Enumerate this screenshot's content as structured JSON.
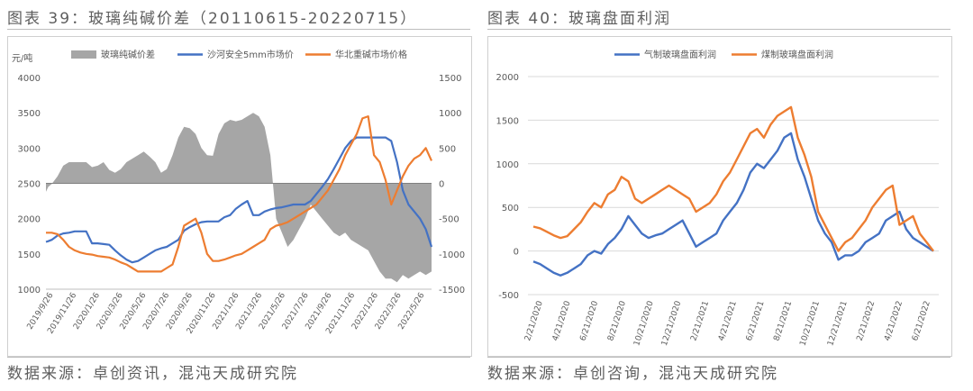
{
  "left": {
    "figure_title": "图表 39：玻璃纯碱价差（20110615-20220715）",
    "source": "数据来源：卓创资讯，混沌天成研究院"
  },
  "right": {
    "figure_title": "图表 40：玻璃盘面利润",
    "source": "数据来源：卓创咨询，混沌天成研究院"
  },
  "colors": {
    "gray": "#a6a6a6",
    "blue": "#4472c4",
    "orange": "#ed7d31",
    "grid": "#d9d9d9",
    "text": "#595959"
  },
  "chart_data": [
    {
      "type": "line",
      "title": "",
      "ylabel": "元/吨",
      "ylim": [
        1000,
        4000
      ],
      "y2lim": [
        -1500,
        1500
      ],
      "yticks": [
        1000,
        1500,
        2000,
        2500,
        3000,
        3500,
        4000
      ],
      "y2ticks": [
        -1500,
        -1000,
        -500,
        0,
        500,
        1000,
        1500
      ],
      "x_ticks": [
        "2019/9/26",
        "2019/11/26",
        "2020/1/26",
        "2020/3/26",
        "2020/5/26",
        "2020/7/26",
        "2020/9/26",
        "2020/11/26",
        "2021/1/26",
        "2021/3/26",
        "2021/5/26",
        "2021/7/26",
        "2021/9/26",
        "2021/11/26",
        "2022/1/26",
        "2022/3/26",
        "2022/5/26"
      ],
      "x": [
        0,
        0.2,
        0.5,
        1,
        1.5,
        2,
        2.5,
        3,
        3.5,
        4,
        4.5,
        5,
        5.5,
        6,
        6.5,
        7,
        7.5,
        8,
        8.5,
        9,
        9.5,
        10,
        10.5,
        11,
        11.5,
        12,
        12.5,
        13,
        13.5,
        14,
        14.5,
        15,
        15.5,
        16,
        16.5,
        17,
        17.5,
        18,
        18.5,
        19,
        19.5,
        20,
        20.5,
        21,
        21.5,
        22,
        22.5,
        23,
        23.5,
        24,
        24.5,
        25,
        25.5,
        26,
        26.5,
        27,
        27.5,
        28,
        28.5,
        29,
        29.5,
        30,
        30.5,
        31,
        31.5,
        32,
        32.5,
        33,
        33.5
      ],
      "legend_position": "top",
      "series": [
        {
          "name": "玻璃纯碱价差",
          "kind": "area",
          "axis": "right",
          "values": [
            -120,
            -50,
            -10,
            100,
            250,
            300,
            300,
            300,
            300,
            230,
            250,
            300,
            190,
            150,
            200,
            300,
            350,
            400,
            450,
            380,
            300,
            150,
            200,
            400,
            650,
            800,
            780,
            700,
            500,
            400,
            390,
            700,
            850,
            900,
            880,
            900,
            950,
            1000,
            950,
            800,
            400,
            -500,
            -700,
            -900,
            -800,
            -650,
            -500,
            -300,
            -400,
            -500,
            -600,
            -700,
            -750,
            -700,
            -800,
            -850,
            -900,
            -950,
            -1100,
            -1250,
            -1350,
            -1350,
            -1400,
            -1300,
            -1350,
            -1300,
            -1250,
            -1300,
            -1250
          ]
        },
        {
          "name": "沙河安全5mm市场价",
          "kind": "line",
          "axis": "left",
          "values": [
            1670,
            1680,
            1700,
            1760,
            1790,
            1800,
            1820,
            1820,
            1820,
            1650,
            1650,
            1640,
            1630,
            1550,
            1480,
            1420,
            1380,
            1400,
            1450,
            1500,
            1550,
            1580,
            1600,
            1650,
            1700,
            1830,
            1880,
            1920,
            1950,
            1960,
            1960,
            1960,
            2020,
            2050,
            2140,
            2200,
            2250,
            2050,
            2050,
            2100,
            2130,
            2150,
            2160,
            2180,
            2200,
            2200,
            2200,
            2250,
            2350,
            2450,
            2560,
            2700,
            2850,
            3000,
            3100,
            3150,
            3150,
            3150,
            3150,
            3150,
            3150,
            3100,
            2800,
            2400,
            2200,
            2100,
            2000,
            1850,
            1600
          ]
        },
        {
          "name": "华北重碱市场价格",
          "kind": "line",
          "axis": "left",
          "values": [
            1800,
            1800,
            1800,
            1780,
            1700,
            1600,
            1550,
            1520,
            1500,
            1490,
            1470,
            1460,
            1450,
            1420,
            1380,
            1350,
            1300,
            1250,
            1250,
            1250,
            1250,
            1250,
            1300,
            1350,
            1600,
            1900,
            1950,
            2000,
            1800,
            1500,
            1400,
            1400,
            1420,
            1450,
            1480,
            1500,
            1550,
            1600,
            1650,
            1700,
            1850,
            1900,
            1920,
            1950,
            2000,
            2050,
            2100,
            2150,
            2200,
            2300,
            2400,
            2550,
            2700,
            2900,
            3050,
            3200,
            3420,
            3450,
            2900,
            2800,
            2550,
            2200,
            2400,
            2600,
            2750,
            2850,
            2900,
            3000,
            2820
          ]
        }
      ]
    },
    {
      "type": "line",
      "title": "",
      "ylim": [
        -500,
        2000
      ],
      "yticks": [
        -500,
        0,
        500,
        1000,
        1500,
        2000
      ],
      "x_ticks": [
        "2/21/2020",
        "4/21/2020",
        "6/21/2020",
        "8/21/2020",
        "10/21/2020",
        "12/21/2020",
        "2/21/2021",
        "4/21/2021",
        "6/21/2021",
        "8/21/2021",
        "10/21/2021",
        "12/21/2021",
        "2/21/2022",
        "4/21/2022",
        "6/21/2022"
      ],
      "x": [
        0,
        0.5,
        1,
        1.5,
        2,
        2.5,
        3,
        3.5,
        4,
        4.5,
        5,
        5.5,
        6,
        6.5,
        7,
        7.5,
        8,
        8.5,
        9,
        9.5,
        10,
        10.5,
        11,
        11.5,
        12,
        12.5,
        13,
        13.5,
        14,
        14.5,
        15,
        15.5,
        16,
        16.5,
        17,
        17.5,
        18,
        18.5,
        19,
        19.5,
        20,
        20.5,
        21,
        21.5,
        22,
        22.5,
        23,
        23.5,
        24,
        24.5,
        25,
        25.5,
        26,
        26.5,
        27,
        27.5,
        28,
        28.5,
        29,
        29.5
      ],
      "legend_position": "top",
      "series": [
        {
          "name": "气制玻璃盘面利润",
          "values": [
            -120,
            -150,
            -200,
            -250,
            -280,
            -250,
            -200,
            -150,
            -50,
            0,
            -30,
            80,
            150,
            250,
            400,
            300,
            200,
            150,
            180,
            200,
            250,
            300,
            350,
            200,
            50,
            100,
            150,
            200,
            350,
            450,
            550,
            700,
            900,
            1000,
            950,
            1050,
            1150,
            1300,
            1350,
            1050,
            850,
            600,
            350,
            200,
            100,
            -100,
            -50,
            -50,
            0,
            100,
            150,
            200,
            350,
            400,
            450,
            250,
            150,
            100,
            50,
            0
          ]
        },
        {
          "name": "煤制玻璃盘面利润",
          "values": [
            280,
            260,
            220,
            180,
            150,
            170,
            250,
            330,
            450,
            550,
            500,
            650,
            700,
            850,
            800,
            600,
            550,
            600,
            650,
            700,
            750,
            700,
            650,
            600,
            450,
            500,
            550,
            650,
            800,
            900,
            1050,
            1200,
            1350,
            1400,
            1300,
            1450,
            1550,
            1600,
            1650,
            1300,
            1100,
            850,
            450,
            300,
            150,
            0,
            100,
            150,
            250,
            350,
            500,
            600,
            700,
            750,
            300,
            350,
            400,
            200,
            100,
            0
          ]
        }
      ]
    }
  ]
}
